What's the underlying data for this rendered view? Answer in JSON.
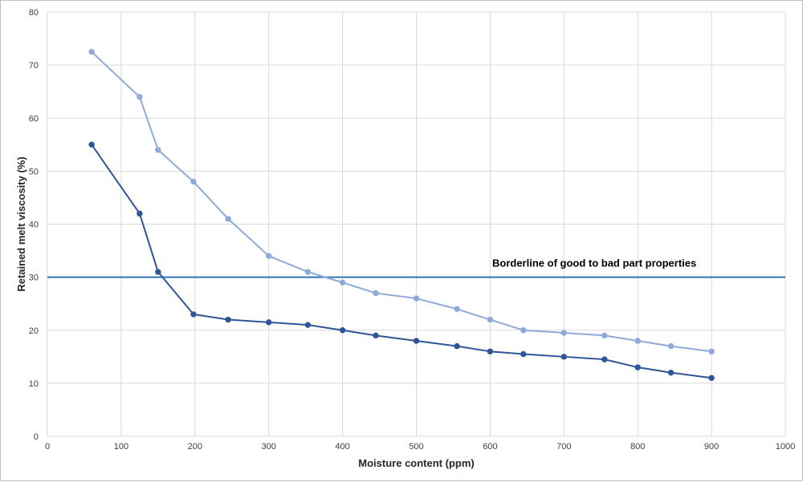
{
  "chart_data": {
    "type": "line",
    "title": "",
    "xlabel": "Moisture content (ppm)",
    "ylabel": "Retained melt viscosity (%)",
    "xlim": [
      0,
      1000
    ],
    "ylim": [
      0,
      80
    ],
    "x_ticks": [
      0,
      100,
      200,
      300,
      400,
      500,
      600,
      700,
      800,
      900,
      1000
    ],
    "y_ticks": [
      0,
      10,
      20,
      30,
      40,
      50,
      60,
      70,
      80
    ],
    "grid": true,
    "legend": "none",
    "series": [
      {
        "color": "#8eaadb",
        "points": [
          [
            60,
            72.5
          ],
          [
            125,
            64
          ],
          [
            150,
            54
          ],
          [
            198,
            48
          ],
          [
            245,
            41
          ],
          [
            300,
            34
          ],
          [
            353,
            31
          ],
          [
            400,
            29
          ],
          [
            445,
            27
          ],
          [
            500,
            26
          ],
          [
            555,
            24
          ],
          [
            600,
            22
          ],
          [
            645,
            20
          ],
          [
            700,
            19.5
          ],
          [
            755,
            19
          ],
          [
            800,
            18
          ],
          [
            845,
            17
          ],
          [
            900,
            16
          ]
        ]
      },
      {
        "color": "#2f5597",
        "points": [
          [
            60,
            55
          ],
          [
            125,
            42
          ],
          [
            150,
            31
          ],
          [
            198,
            23
          ],
          [
            245,
            22
          ],
          [
            300,
            21.5
          ],
          [
            353,
            21
          ],
          [
            400,
            20
          ],
          [
            445,
            19
          ],
          [
            500,
            18
          ],
          [
            555,
            17
          ],
          [
            600,
            16
          ],
          [
            645,
            15.5
          ],
          [
            700,
            15
          ],
          [
            755,
            14.5
          ],
          [
            800,
            13
          ],
          [
            845,
            12
          ],
          [
            900,
            11
          ]
        ]
      }
    ],
    "reference_line": {
      "y": 30,
      "color": "#2e75b6",
      "label": "Borderline of good to bad part properties"
    }
  }
}
